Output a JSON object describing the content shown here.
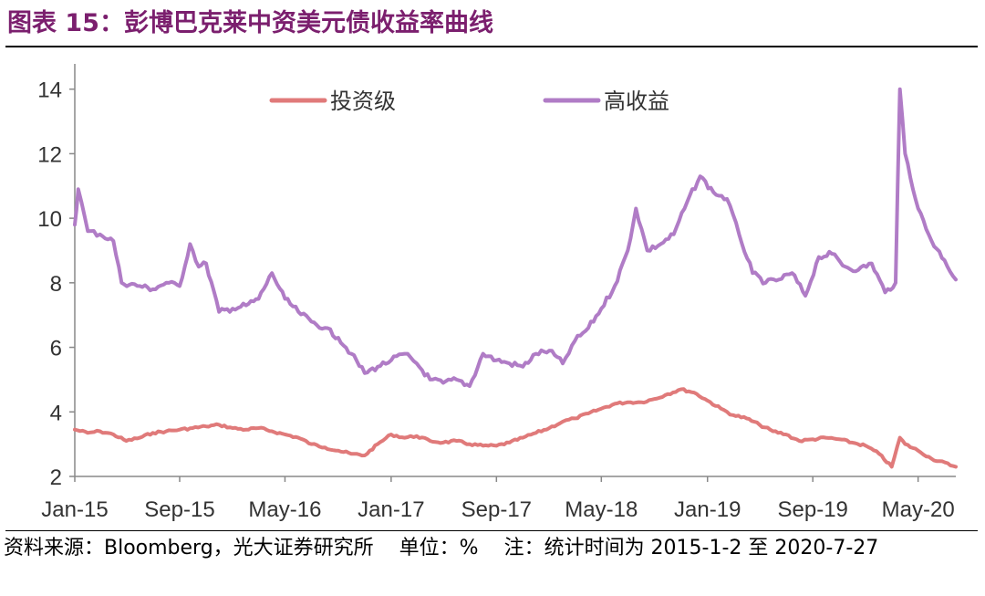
{
  "header": {
    "title_prefix": "图表 15：",
    "title_text": "彭博巴克莱中资美元债收益率曲线",
    "title_color": "#7b1f6e"
  },
  "footer": {
    "source": "资料来源：Bloomberg，光大证券研究所",
    "unit": "单位：%",
    "note": "注：统计时间为 2015-1-2 至 2020-7-27"
  },
  "chart_data": {
    "type": "line",
    "x_range": [
      "2015-01-02",
      "2020-07-27"
    ],
    "ylim": [
      2,
      14.5
    ],
    "yticks": [
      "2",
      "4",
      "6",
      "8",
      "10",
      "12",
      "14"
    ],
    "xticks": [
      "Jan-15",
      "Sep-15",
      "May-16",
      "Jan-17",
      "Sep-17",
      "May-18",
      "Jan-19",
      "Sep-19",
      "May-20"
    ],
    "grid": false,
    "legend_position": "top",
    "series": [
      {
        "name": "投资级",
        "color": "#e07a7a",
        "points": [
          [
            "2015-01-02",
            3.45
          ],
          [
            "2015-02-01",
            3.35
          ],
          [
            "2015-03-01",
            3.4
          ],
          [
            "2015-04-01",
            3.3
          ],
          [
            "2015-05-01",
            3.1
          ],
          [
            "2015-06-01",
            3.2
          ],
          [
            "2015-07-01",
            3.35
          ],
          [
            "2015-08-01",
            3.4
          ],
          [
            "2015-09-01",
            3.45
          ],
          [
            "2015-10-01",
            3.5
          ],
          [
            "2015-11-01",
            3.55
          ],
          [
            "2015-12-01",
            3.6
          ],
          [
            "2016-01-01",
            3.5
          ],
          [
            "2016-02-01",
            3.45
          ],
          [
            "2016-03-01",
            3.5
          ],
          [
            "2016-04-01",
            3.4
          ],
          [
            "2016-05-01",
            3.3
          ],
          [
            "2016-06-01",
            3.2
          ],
          [
            "2016-07-01",
            3.0
          ],
          [
            "2016-08-01",
            2.9
          ],
          [
            "2016-09-01",
            2.8
          ],
          [
            "2016-10-01",
            2.7
          ],
          [
            "2016-11-01",
            2.65
          ],
          [
            "2016-12-01",
            3.0
          ],
          [
            "2017-01-01",
            3.3
          ],
          [
            "2017-02-01",
            3.2
          ],
          [
            "2017-03-01",
            3.25
          ],
          [
            "2017-04-01",
            3.1
          ],
          [
            "2017-05-01",
            3.05
          ],
          [
            "2017-06-01",
            3.1
          ],
          [
            "2017-07-01",
            3.0
          ],
          [
            "2017-08-01",
            2.95
          ],
          [
            "2017-09-01",
            2.95
          ],
          [
            "2017-10-01",
            3.05
          ],
          [
            "2017-11-01",
            3.2
          ],
          [
            "2017-12-01",
            3.35
          ],
          [
            "2018-01-01",
            3.5
          ],
          [
            "2018-02-01",
            3.7
          ],
          [
            "2018-03-01",
            3.8
          ],
          [
            "2018-04-01",
            3.95
          ],
          [
            "2018-05-01",
            4.1
          ],
          [
            "2018-06-01",
            4.25
          ],
          [
            "2018-07-01",
            4.3
          ],
          [
            "2018-08-01",
            4.3
          ],
          [
            "2018-09-01",
            4.4
          ],
          [
            "2018-10-01",
            4.55
          ],
          [
            "2018-11-01",
            4.7
          ],
          [
            "2018-12-01",
            4.6
          ],
          [
            "2019-01-01",
            4.35
          ],
          [
            "2019-02-01",
            4.1
          ],
          [
            "2019-03-01",
            3.9
          ],
          [
            "2019-04-01",
            3.8
          ],
          [
            "2019-05-01",
            3.6
          ],
          [
            "2019-06-01",
            3.4
          ],
          [
            "2019-07-01",
            3.3
          ],
          [
            "2019-08-01",
            3.1
          ],
          [
            "2019-09-01",
            3.15
          ],
          [
            "2019-10-01",
            3.2
          ],
          [
            "2019-11-01",
            3.15
          ],
          [
            "2019-12-01",
            3.05
          ],
          [
            "2020-01-01",
            2.95
          ],
          [
            "2020-02-01",
            2.7
          ],
          [
            "2020-03-01",
            2.3
          ],
          [
            "2020-03-20",
            3.2
          ],
          [
            "2020-04-01",
            3.0
          ],
          [
            "2020-05-01",
            2.8
          ],
          [
            "2020-06-01",
            2.55
          ],
          [
            "2020-07-27",
            2.3
          ]
        ]
      },
      {
        "name": "高收益",
        "color": "#b07cc6",
        "points": [
          [
            "2015-01-02",
            9.8
          ],
          [
            "2015-01-10",
            10.9
          ],
          [
            "2015-02-01",
            9.6
          ],
          [
            "2015-03-01",
            9.5
          ],
          [
            "2015-04-01",
            9.3
          ],
          [
            "2015-04-20",
            8.0
          ],
          [
            "2015-06-01",
            7.9
          ],
          [
            "2015-07-01",
            7.8
          ],
          [
            "2015-08-01",
            8.0
          ],
          [
            "2015-09-01",
            7.9
          ],
          [
            "2015-09-25",
            9.2
          ],
          [
            "2015-10-15",
            8.5
          ],
          [
            "2015-11-01",
            8.6
          ],
          [
            "2015-12-01",
            7.1
          ],
          [
            "2016-01-01",
            7.2
          ],
          [
            "2016-02-01",
            7.3
          ],
          [
            "2016-03-01",
            7.5
          ],
          [
            "2016-04-01",
            8.3
          ],
          [
            "2016-05-01",
            7.5
          ],
          [
            "2016-06-01",
            7.1
          ],
          [
            "2016-07-01",
            6.8
          ],
          [
            "2016-08-01",
            6.6
          ],
          [
            "2016-09-01",
            6.3
          ],
          [
            "2016-10-01",
            5.8
          ],
          [
            "2016-11-01",
            5.2
          ],
          [
            "2016-12-01",
            5.4
          ],
          [
            "2017-01-01",
            5.6
          ],
          [
            "2017-02-01",
            5.8
          ],
          [
            "2017-03-01",
            5.5
          ],
          [
            "2017-04-01",
            5.0
          ],
          [
            "2017-05-01",
            4.9
          ],
          [
            "2017-06-01",
            5.0
          ],
          [
            "2017-07-01",
            4.8
          ],
          [
            "2017-08-01",
            5.8
          ],
          [
            "2017-09-01",
            5.6
          ],
          [
            "2017-10-01",
            5.5
          ],
          [
            "2017-11-01",
            5.4
          ],
          [
            "2017-12-01",
            5.8
          ],
          [
            "2018-01-01",
            5.9
          ],
          [
            "2018-02-01",
            5.5
          ],
          [
            "2018-03-01",
            6.2
          ],
          [
            "2018-04-01",
            6.6
          ],
          [
            "2018-05-01",
            7.2
          ],
          [
            "2018-06-01",
            7.9
          ],
          [
            "2018-07-01",
            9.0
          ],
          [
            "2018-07-20",
            10.3
          ],
          [
            "2018-08-15",
            9.0
          ],
          [
            "2018-09-15",
            9.2
          ],
          [
            "2018-10-15",
            9.5
          ],
          [
            "2018-11-15",
            10.5
          ],
          [
            "2018-12-15",
            11.3
          ],
          [
            "2019-01-15",
            10.8
          ],
          [
            "2019-02-15",
            10.6
          ],
          [
            "2019-03-15",
            9.5
          ],
          [
            "2019-04-15",
            8.3
          ],
          [
            "2019-05-15",
            8.0
          ],
          [
            "2019-06-15",
            8.1
          ],
          [
            "2019-07-15",
            8.3
          ],
          [
            "2019-08-15",
            7.6
          ],
          [
            "2019-09-15",
            8.8
          ],
          [
            "2019-10-15",
            8.9
          ],
          [
            "2019-11-15",
            8.5
          ],
          [
            "2019-12-15",
            8.4
          ],
          [
            "2020-01-15",
            8.6
          ],
          [
            "2020-02-15",
            7.7
          ],
          [
            "2020-03-10",
            8.0
          ],
          [
            "2020-03-20",
            14.0
          ],
          [
            "2020-04-01",
            12.0
          ],
          [
            "2020-05-01",
            10.3
          ],
          [
            "2020-06-01",
            9.3
          ],
          [
            "2020-07-01",
            8.7
          ],
          [
            "2020-07-27",
            8.1
          ]
        ]
      }
    ]
  }
}
